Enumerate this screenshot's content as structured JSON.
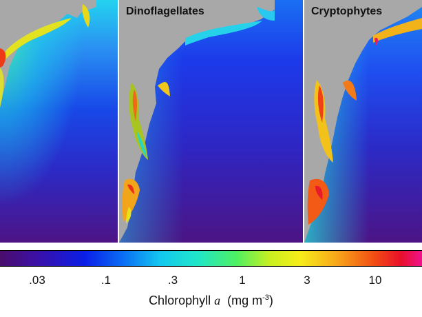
{
  "panels": [
    {
      "title": ""
    },
    {
      "title": "Dinoflagellates"
    },
    {
      "title": "Cryptophytes"
    }
  ],
  "colorbar": {
    "ticks": [
      ".03",
      ".1",
      ".3",
      "1",
      "3",
      "10"
    ],
    "label_main": "Chlorophyll",
    "label_var": "a",
    "label_units": "(mg m",
    "label_exp": "-3",
    "label_close": ")",
    "colors": [
      "#4b0d6b",
      "#0a1ee6",
      "#12c8ee",
      "#4ef062",
      "#f6ee1a",
      "#f24a14",
      "#f0128c"
    ]
  },
  "legend": {
    "land_color": "#a8a8a8",
    "ocean_low_color": "#4b0d6b"
  }
}
